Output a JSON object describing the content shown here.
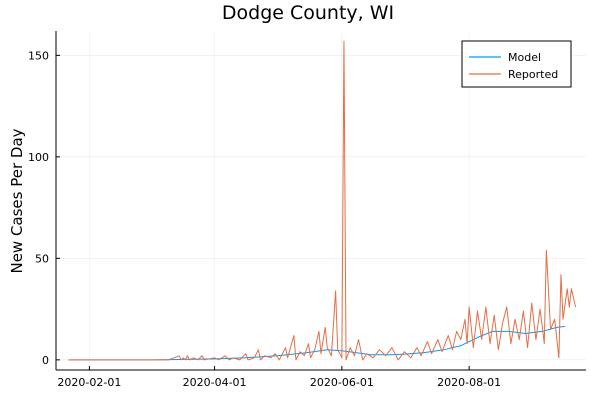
{
  "chart_data": {
    "type": "line",
    "title": "Dodge County, WI",
    "xlabel": "",
    "ylabel": "New Cases Per Day",
    "xlim": [
      "2020-01-16",
      "2020-09-26"
    ],
    "ylim": [
      -5,
      162
    ],
    "x_ticks": [
      "2020-02-01",
      "2020-04-01",
      "2020-06-01",
      "2020-08-01"
    ],
    "y_ticks": [
      0,
      50,
      100,
      150
    ],
    "grid": true,
    "legend_position": "top-right",
    "series": [
      {
        "name": "Model",
        "color": "#009AFA",
        "points": [
          [
            "2020-01-22",
            0
          ],
          [
            "2020-03-01",
            0
          ],
          [
            "2020-03-15",
            0.2
          ],
          [
            "2020-04-01",
            0.5
          ],
          [
            "2020-04-15",
            1
          ],
          [
            "2020-05-01",
            2
          ],
          [
            "2020-05-15",
            3.5
          ],
          [
            "2020-05-25",
            5
          ],
          [
            "2020-06-01",
            4.5
          ],
          [
            "2020-06-08",
            3.5
          ],
          [
            "2020-06-15",
            2.5
          ],
          [
            "2020-06-25",
            2.5
          ],
          [
            "2020-07-01",
            2.8
          ],
          [
            "2020-07-10",
            3.5
          ],
          [
            "2020-07-20",
            5
          ],
          [
            "2020-07-28",
            7
          ],
          [
            "2020-08-05",
            11
          ],
          [
            "2020-08-12",
            14
          ],
          [
            "2020-08-20",
            14
          ],
          [
            "2020-08-28",
            13
          ],
          [
            "2020-09-05",
            14
          ],
          [
            "2020-09-12",
            16
          ],
          [
            "2020-09-16",
            16.5
          ]
        ]
      },
      {
        "name": "Reported",
        "color": "#E26F46",
        "points": [
          [
            "2020-01-22",
            0
          ],
          [
            "2020-03-10",
            0
          ],
          [
            "2020-03-15",
            2
          ],
          [
            "2020-03-16",
            0
          ],
          [
            "2020-03-17",
            1
          ],
          [
            "2020-03-18",
            0
          ],
          [
            "2020-03-19",
            2
          ],
          [
            "2020-03-20",
            0
          ],
          [
            "2020-03-22",
            1
          ],
          [
            "2020-03-24",
            0
          ],
          [
            "2020-03-26",
            2
          ],
          [
            "2020-03-27",
            0
          ],
          [
            "2020-04-01",
            1
          ],
          [
            "2020-04-03",
            0
          ],
          [
            "2020-04-06",
            2
          ],
          [
            "2020-04-08",
            0
          ],
          [
            "2020-04-10",
            1
          ],
          [
            "2020-04-13",
            0
          ],
          [
            "2020-04-16",
            3
          ],
          [
            "2020-04-17",
            0
          ],
          [
            "2020-04-20",
            1
          ],
          [
            "2020-04-22",
            5
          ],
          [
            "2020-04-23",
            0
          ],
          [
            "2020-04-25",
            2
          ],
          [
            "2020-04-28",
            1
          ],
          [
            "2020-04-30",
            3
          ],
          [
            "2020-05-02",
            0
          ],
          [
            "2020-05-05",
            6
          ],
          [
            "2020-05-06",
            1
          ],
          [
            "2020-05-09",
            12
          ],
          [
            "2020-05-10",
            0
          ],
          [
            "2020-05-12",
            4
          ],
          [
            "2020-05-14",
            2
          ],
          [
            "2020-05-16",
            8
          ],
          [
            "2020-05-17",
            1
          ],
          [
            "2020-05-19",
            5
          ],
          [
            "2020-05-21",
            14
          ],
          [
            "2020-05-22",
            3
          ],
          [
            "2020-05-24",
            16
          ],
          [
            "2020-05-25",
            6
          ],
          [
            "2020-05-27",
            2
          ],
          [
            "2020-05-29",
            34
          ],
          [
            "2020-05-30",
            5
          ],
          [
            "2020-06-01",
            1
          ],
          [
            "2020-06-02",
            157
          ],
          [
            "2020-06-03",
            0
          ],
          [
            "2020-06-05",
            6
          ],
          [
            "2020-06-07",
            2
          ],
          [
            "2020-06-09",
            10
          ],
          [
            "2020-06-11",
            0
          ],
          [
            "2020-06-13",
            3
          ],
          [
            "2020-06-16",
            1
          ],
          [
            "2020-06-19",
            5
          ],
          [
            "2020-06-22",
            2
          ],
          [
            "2020-06-25",
            6
          ],
          [
            "2020-06-28",
            0
          ],
          [
            "2020-07-01",
            4
          ],
          [
            "2020-07-04",
            1
          ],
          [
            "2020-07-07",
            6
          ],
          [
            "2020-07-09",
            2
          ],
          [
            "2020-07-12",
            9
          ],
          [
            "2020-07-14",
            3
          ],
          [
            "2020-07-17",
            10
          ],
          [
            "2020-07-19",
            4
          ],
          [
            "2020-07-22",
            12
          ],
          [
            "2020-07-24",
            5
          ],
          [
            "2020-07-26",
            14
          ],
          [
            "2020-07-28",
            10
          ],
          [
            "2020-07-30",
            20
          ],
          [
            "2020-07-31",
            8
          ],
          [
            "2020-08-01",
            26
          ],
          [
            "2020-08-03",
            6
          ],
          [
            "2020-08-05",
            24
          ],
          [
            "2020-08-07",
            10
          ],
          [
            "2020-08-09",
            26
          ],
          [
            "2020-08-11",
            8
          ],
          [
            "2020-08-13",
            22
          ],
          [
            "2020-08-15",
            5
          ],
          [
            "2020-08-17",
            18
          ],
          [
            "2020-08-19",
            26
          ],
          [
            "2020-08-21",
            8
          ],
          [
            "2020-08-23",
            20
          ],
          [
            "2020-08-25",
            10
          ],
          [
            "2020-08-27",
            24
          ],
          [
            "2020-08-29",
            6
          ],
          [
            "2020-08-31",
            28
          ],
          [
            "2020-09-02",
            10
          ],
          [
            "2020-09-04",
            25
          ],
          [
            "2020-09-06",
            8
          ],
          [
            "2020-09-07",
            54
          ],
          [
            "2020-09-09",
            15
          ],
          [
            "2020-09-11",
            20
          ],
          [
            "2020-09-13",
            1
          ],
          [
            "2020-09-14",
            42
          ],
          [
            "2020-09-15",
            20
          ],
          [
            "2020-09-17",
            35
          ],
          [
            "2020-09-18",
            26
          ],
          [
            "2020-09-19",
            35
          ],
          [
            "2020-09-21",
            26
          ]
        ]
      }
    ]
  }
}
